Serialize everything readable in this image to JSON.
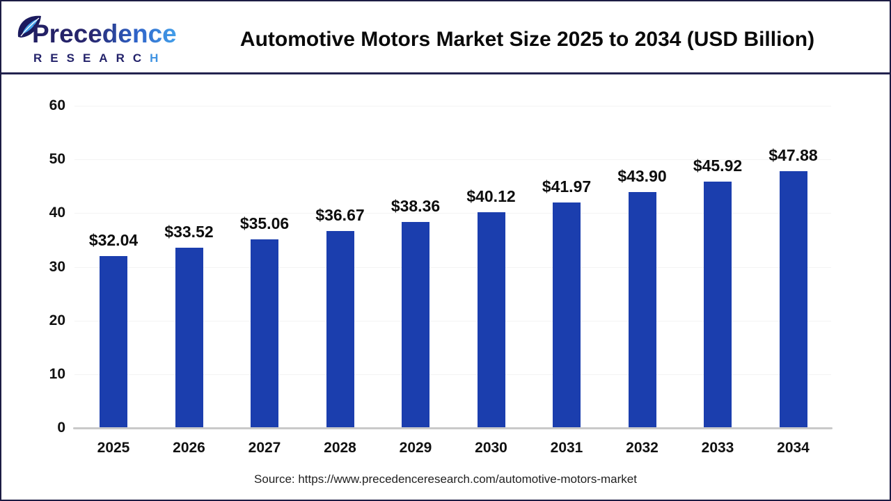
{
  "header": {
    "logo": {
      "brand": "Precedence",
      "sub_prefix": "RESEARC",
      "sub_suffix": "H"
    },
    "title": "Automotive Motors Market Size 2025 to 2034 (USD Billion)"
  },
  "chart_data": {
    "type": "bar",
    "title": "Automotive Motors Market Size 2025 to 2034 (USD Billion)",
    "categories": [
      "2025",
      "2026",
      "2027",
      "2028",
      "2029",
      "2030",
      "2031",
      "2032",
      "2033",
      "2034"
    ],
    "values": [
      32.04,
      33.52,
      35.06,
      36.67,
      38.36,
      40.12,
      41.97,
      43.9,
      45.92,
      47.88
    ],
    "value_prefix": "$",
    "value_decimals": 2,
    "xlabel": "",
    "ylabel": "",
    "ylim": [
      0,
      60
    ],
    "yticks": [
      0,
      10,
      20,
      30,
      40,
      50,
      60
    ],
    "grid": "faint-horizontal",
    "legend": "none",
    "bar_color": "#1b3eae"
  },
  "footer": {
    "source": "Source: https://www.precedenceresearch.com/automotive-motors-market"
  }
}
